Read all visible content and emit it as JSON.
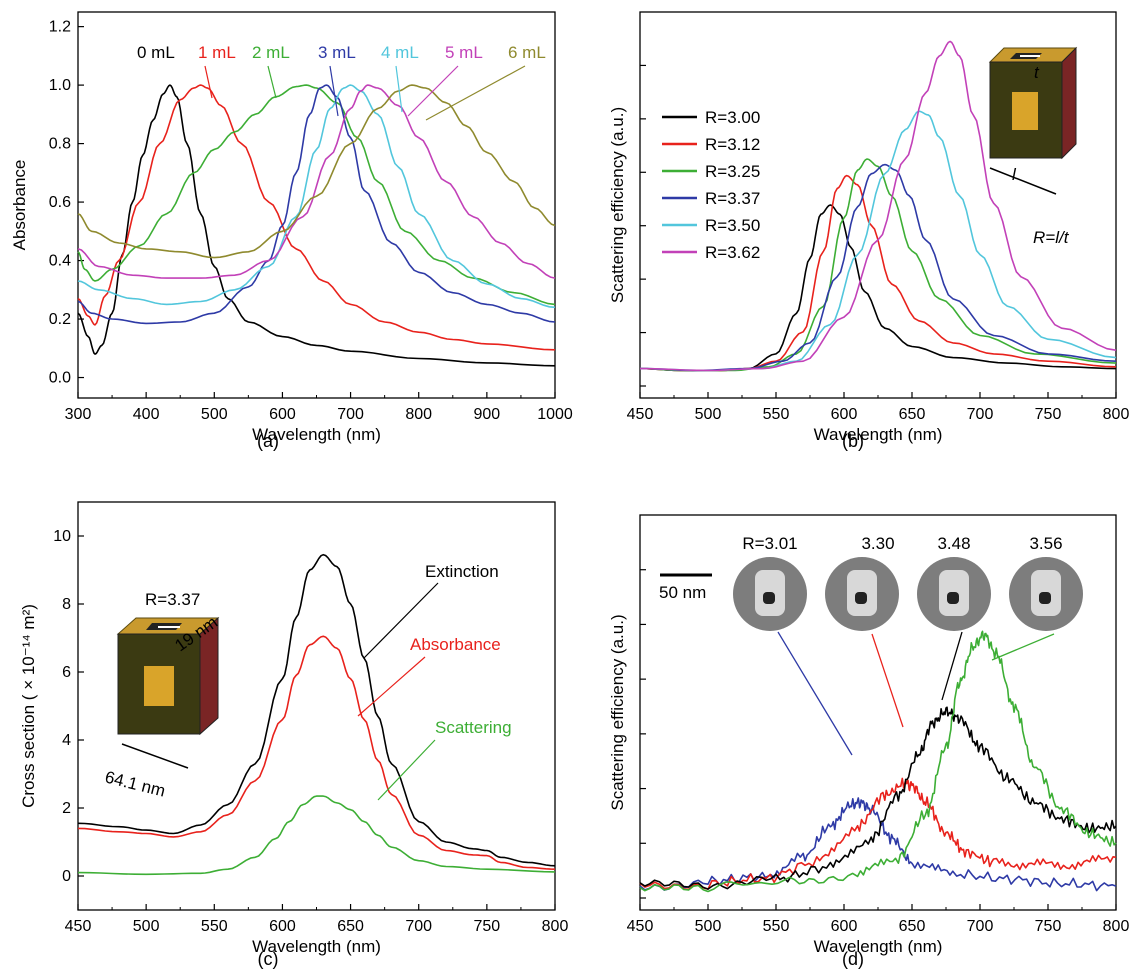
{
  "chart_data": [
    {
      "panel_label": "(a)",
      "type": "line",
      "xlabel": "Wavelength (nm)",
      "ylabel": "Absorbance",
      "xlim": [
        300,
        1000
      ],
      "ylim": [
        -0.07,
        1.25
      ],
      "xticks": [
        "300",
        "400",
        "500",
        "600",
        "700",
        "800",
        "900",
        "1000"
      ],
      "yticks": [
        "0.0",
        "0.2",
        "0.4",
        "0.6",
        "0.8",
        "1.0",
        "1.2"
      ],
      "xtick_values": [
        300,
        400,
        500,
        600,
        700,
        800,
        900,
        1000
      ],
      "ytick_values": [
        0,
        0.2,
        0.4,
        0.6,
        0.8,
        1.0,
        1.2
      ],
      "series": [
        {
          "name": "0 mL",
          "color": "#000000",
          "label_color": "#000000",
          "x": [
            300,
            315,
            325,
            335,
            350,
            365,
            380,
            395,
            410,
            425,
            435,
            445,
            460,
            480,
            500,
            520,
            550,
            600,
            650,
            700,
            800,
            900,
            1000
          ],
          "y": [
            0.22,
            0.14,
            0.08,
            0.11,
            0.22,
            0.42,
            0.6,
            0.76,
            0.88,
            0.97,
            1.0,
            0.96,
            0.8,
            0.56,
            0.38,
            0.27,
            0.19,
            0.14,
            0.11,
            0.09,
            0.065,
            0.05,
            0.04
          ]
        },
        {
          "name": "1 mL",
          "color": "#e8221c",
          "label_color": "#e8221c",
          "x": [
            300,
            315,
            325,
            340,
            360,
            390,
            420,
            450,
            470,
            480,
            490,
            510,
            540,
            580,
            620,
            660,
            700,
            750,
            800,
            850,
            900,
            1000
          ],
          "y": [
            0.27,
            0.21,
            0.18,
            0.28,
            0.4,
            0.6,
            0.8,
            0.95,
            0.99,
            1.0,
            0.99,
            0.93,
            0.8,
            0.6,
            0.44,
            0.33,
            0.25,
            0.19,
            0.155,
            0.13,
            0.115,
            0.095
          ]
        },
        {
          "name": "2 mL",
          "color": "#3dae35",
          "label_color": "#3dae35",
          "x": [
            300,
            310,
            325,
            350,
            390,
            430,
            470,
            500,
            530,
            560,
            590,
            620,
            635,
            650,
            680,
            710,
            740,
            780,
            830,
            880,
            940,
            1000
          ],
          "y": [
            0.43,
            0.37,
            0.33,
            0.37,
            0.45,
            0.56,
            0.7,
            0.78,
            0.84,
            0.9,
            0.96,
            0.995,
            1.0,
            0.99,
            0.94,
            0.82,
            0.67,
            0.5,
            0.4,
            0.34,
            0.29,
            0.25
          ]
        },
        {
          "name": "3 mL",
          "color": "#2e3aa6",
          "label_color": "#2e3aa6",
          "x": [
            300,
            320,
            350,
            400,
            450,
            500,
            550,
            580,
            600,
            620,
            640,
            655,
            665,
            680,
            700,
            720,
            760,
            800,
            850,
            900,
            950,
            1000
          ],
          "y": [
            0.26,
            0.22,
            0.2,
            0.185,
            0.19,
            0.22,
            0.31,
            0.4,
            0.52,
            0.7,
            0.9,
            0.99,
            1.0,
            0.96,
            0.82,
            0.64,
            0.46,
            0.36,
            0.29,
            0.25,
            0.22,
            0.19
          ]
        },
        {
          "name": "4 mL",
          "color": "#52c6dc",
          "label_color": "#52c6dc",
          "x": [
            300,
            330,
            380,
            430,
            480,
            530,
            580,
            620,
            650,
            670,
            690,
            700,
            715,
            740,
            770,
            800,
            850,
            900,
            950,
            1000
          ],
          "y": [
            0.33,
            0.3,
            0.27,
            0.25,
            0.26,
            0.3,
            0.38,
            0.55,
            0.78,
            0.92,
            0.99,
            1.0,
            0.98,
            0.9,
            0.72,
            0.56,
            0.4,
            0.32,
            0.27,
            0.24
          ]
        },
        {
          "name": "5 mL",
          "color": "#c241b8",
          "label_color": "#c241b8",
          "x": [
            300,
            330,
            380,
            430,
            480,
            530,
            580,
            630,
            670,
            700,
            715,
            725,
            740,
            770,
            800,
            840,
            880,
            920,
            960,
            1000
          ],
          "y": [
            0.44,
            0.38,
            0.35,
            0.34,
            0.34,
            0.35,
            0.4,
            0.55,
            0.76,
            0.92,
            0.98,
            1.0,
            0.99,
            0.93,
            0.82,
            0.67,
            0.55,
            0.46,
            0.39,
            0.34
          ]
        },
        {
          "name": "6 mL",
          "color": "#8f8a2e",
          "label_color": "#8f8a2e",
          "x": [
            300,
            320,
            360,
            400,
            450,
            500,
            550,
            600,
            650,
            700,
            740,
            770,
            790,
            810,
            840,
            870,
            900,
            940,
            970,
            1000
          ],
          "y": [
            0.56,
            0.5,
            0.46,
            0.44,
            0.43,
            0.41,
            0.43,
            0.5,
            0.62,
            0.8,
            0.92,
            0.98,
            1.0,
            0.99,
            0.94,
            0.86,
            0.77,
            0.67,
            0.58,
            0.52
          ]
        }
      ]
    },
    {
      "panel_label": "(b)",
      "type": "line",
      "xlabel": "Wavelength (nm)",
      "ylabel": "Scattering efficiency (a.u.)",
      "xlim": [
        450,
        800
      ],
      "ylim": [
        -0.05,
        1.0
      ],
      "xticks": [
        "450",
        "500",
        "550",
        "600",
        "650",
        "700",
        "750",
        "800"
      ],
      "xtick_values": [
        450,
        500,
        550,
        600,
        650,
        700,
        750,
        800
      ],
      "annotation": "R=l/t",
      "series": [
        {
          "name": "R=3.00",
          "color": "#000000",
          "x": [
            450,
            480,
            510,
            530,
            550,
            565,
            575,
            583,
            590,
            597,
            605,
            615,
            630,
            650,
            680,
            720,
            760,
            800
          ],
          "y": [
            0.03,
            0.025,
            0.025,
            0.03,
            0.07,
            0.18,
            0.33,
            0.45,
            0.475,
            0.45,
            0.36,
            0.24,
            0.14,
            0.09,
            0.06,
            0.045,
            0.035,
            0.03
          ]
        },
        {
          "name": "R=3.12",
          "color": "#e8221c",
          "x": [
            450,
            480,
            510,
            530,
            550,
            570,
            585,
            595,
            602,
            610,
            620,
            635,
            655,
            680,
            710,
            750,
            800
          ],
          "y": [
            0.03,
            0.025,
            0.025,
            0.03,
            0.05,
            0.13,
            0.35,
            0.52,
            0.555,
            0.53,
            0.42,
            0.26,
            0.16,
            0.1,
            0.07,
            0.05,
            0.035
          ]
        },
        {
          "name": "R=3.25",
          "color": "#3dae35",
          "x": [
            450,
            480,
            520,
            545,
            565,
            585,
            600,
            610,
            617,
            625,
            635,
            650,
            670,
            700,
            740,
            800
          ],
          "y": [
            0.03,
            0.025,
            0.025,
            0.035,
            0.07,
            0.2,
            0.44,
            0.57,
            0.6,
            0.58,
            0.5,
            0.35,
            0.22,
            0.12,
            0.07,
            0.045
          ]
        },
        {
          "name": "R=3.37",
          "color": "#2e3aa6",
          "x": [
            450,
            490,
            530,
            555,
            575,
            595,
            610,
            620,
            630,
            638,
            648,
            660,
            680,
            710,
            750,
            800
          ],
          "y": [
            0.03,
            0.025,
            0.03,
            0.05,
            0.1,
            0.28,
            0.47,
            0.56,
            0.585,
            0.57,
            0.5,
            0.38,
            0.22,
            0.12,
            0.07,
            0.05
          ]
        },
        {
          "name": "R=3.50",
          "color": "#52c6dc",
          "x": [
            450,
            500,
            540,
            565,
            590,
            610,
            630,
            645,
            655,
            662,
            670,
            685,
            700,
            720,
            750,
            800
          ],
          "y": [
            0.03,
            0.025,
            0.03,
            0.05,
            0.15,
            0.34,
            0.56,
            0.68,
            0.73,
            0.72,
            0.66,
            0.5,
            0.34,
            0.2,
            0.11,
            0.06
          ]
        },
        {
          "name": "R=3.62",
          "color": "#c241b8",
          "x": [
            450,
            500,
            540,
            570,
            600,
            625,
            645,
            660,
            670,
            678,
            685,
            695,
            710,
            730,
            760,
            800
          ],
          "y": [
            0.03,
            0.025,
            0.03,
            0.05,
            0.17,
            0.38,
            0.6,
            0.78,
            0.88,
            0.92,
            0.88,
            0.72,
            0.48,
            0.28,
            0.14,
            0.08
          ]
        }
      ]
    },
    {
      "panel_label": "(c)",
      "type": "line",
      "xlabel": "Wavelength (nm)",
      "ylabel": "Cross section ( × 10⁻¹⁴ m²)",
      "xlim": [
        450,
        800
      ],
      "ylim": [
        -1,
        11
      ],
      "xticks": [
        "450",
        "500",
        "550",
        "600",
        "650",
        "700",
        "750",
        "800"
      ],
      "yticks": [
        "0",
        "2",
        "4",
        "6",
        "8",
        "10"
      ],
      "xtick_values": [
        450,
        500,
        550,
        600,
        650,
        700,
        750,
        800
      ],
      "ytick_values": [
        0,
        2,
        4,
        6,
        8,
        10
      ],
      "annotations": {
        "r_value": "R=3.37",
        "size_t": "19 nm",
        "size_l": "64.1 nm"
      },
      "series": [
        {
          "name": "Extinction",
          "color": "#000000",
          "x": [
            450,
            480,
            500,
            520,
            540,
            560,
            580,
            600,
            610,
            620,
            630,
            640,
            650,
            660,
            670,
            680,
            700,
            720,
            740,
            750,
            760,
            780,
            800
          ],
          "y": [
            1.55,
            1.45,
            1.35,
            1.25,
            1.5,
            2.1,
            3.3,
            5.8,
            7.6,
            9.0,
            9.45,
            9.1,
            8.0,
            6.4,
            4.7,
            3.3,
            1.6,
            1.0,
            0.8,
            0.75,
            0.55,
            0.4,
            0.3
          ]
        },
        {
          "name": "Absorbance",
          "color": "#e8221c",
          "x": [
            450,
            480,
            500,
            520,
            540,
            560,
            580,
            600,
            610,
            620,
            630,
            640,
            650,
            660,
            670,
            680,
            700,
            720,
            740,
            750,
            760,
            780,
            800
          ],
          "y": [
            1.4,
            1.3,
            1.25,
            1.15,
            1.3,
            1.8,
            2.8,
            4.6,
            5.9,
            6.8,
            7.05,
            6.7,
            5.8,
            4.6,
            3.4,
            2.4,
            1.2,
            0.75,
            0.62,
            0.6,
            0.4,
            0.25,
            0.2
          ]
        },
        {
          "name": "Scattering",
          "color": "#3dae35",
          "x": [
            450,
            500,
            540,
            560,
            580,
            595,
            605,
            615,
            625,
            630,
            640,
            650,
            660,
            670,
            680,
            700,
            720,
            750,
            800
          ],
          "y": [
            0.1,
            0.05,
            0.08,
            0.2,
            0.55,
            1.1,
            1.6,
            2.1,
            2.35,
            2.35,
            2.15,
            1.95,
            1.6,
            1.2,
            0.85,
            0.45,
            0.28,
            0.2,
            0.12
          ]
        }
      ]
    },
    {
      "panel_label": "(d)",
      "type": "line",
      "xlabel": "Wavelength (nm)",
      "ylabel": "Scattering efficiency (a.u.)",
      "xlim": [
        450,
        800
      ],
      "ylim": [
        -0.1,
        1.55
      ],
      "xticks": [
        "450",
        "500",
        "550",
        "600",
        "650",
        "700",
        "750",
        "800"
      ],
      "xtick_values": [
        450,
        500,
        550,
        600,
        650,
        700,
        750,
        800
      ],
      "scale_bar": "50 nm",
      "particle_labels": [
        "R=3.01",
        "3.30",
        "3.48",
        "3.56"
      ],
      "series": [
        {
          "name": "R=3.01",
          "color": "#2e3aa6",
          "x": [
            450,
            500,
            540,
            570,
            590,
            605,
            612,
            620,
            635,
            650,
            680,
            720,
            760,
            800
          ],
          "y": [
            0.0,
            0.02,
            0.04,
            0.12,
            0.25,
            0.34,
            0.35,
            0.32,
            0.2,
            0.1,
            0.05,
            0.03,
            0.01,
            0.0
          ]
        },
        {
          "name": "R=3.30",
          "color": "#e8221c",
          "x": [
            450,
            500,
            540,
            580,
            610,
            630,
            645,
            650,
            660,
            675,
            690,
            710,
            740,
            770,
            800
          ],
          "y": [
            0.0,
            0.01,
            0.03,
            0.1,
            0.25,
            0.38,
            0.43,
            0.42,
            0.35,
            0.22,
            0.14,
            0.1,
            0.09,
            0.09,
            0.12
          ]
        },
        {
          "name": "R=3.48",
          "color": "#000000",
          "x": [
            450,
            500,
            550,
            590,
            620,
            640,
            655,
            665,
            675,
            685,
            700,
            720,
            740,
            760,
            780,
            800
          ],
          "y": [
            0.0,
            0.01,
            0.03,
            0.08,
            0.2,
            0.38,
            0.55,
            0.68,
            0.73,
            0.7,
            0.58,
            0.45,
            0.35,
            0.28,
            0.24,
            0.25
          ]
        },
        {
          "name": "R=3.56",
          "color": "#3dae35",
          "x": [
            450,
            500,
            560,
            610,
            640,
            660,
            675,
            685,
            695,
            703,
            712,
            725,
            740,
            760,
            780,
            800
          ],
          "y": [
            -0.02,
            0.0,
            0.02,
            0.05,
            0.12,
            0.3,
            0.58,
            0.85,
            1.0,
            1.05,
            0.97,
            0.75,
            0.5,
            0.32,
            0.22,
            0.18
          ]
        }
      ]
    }
  ]
}
